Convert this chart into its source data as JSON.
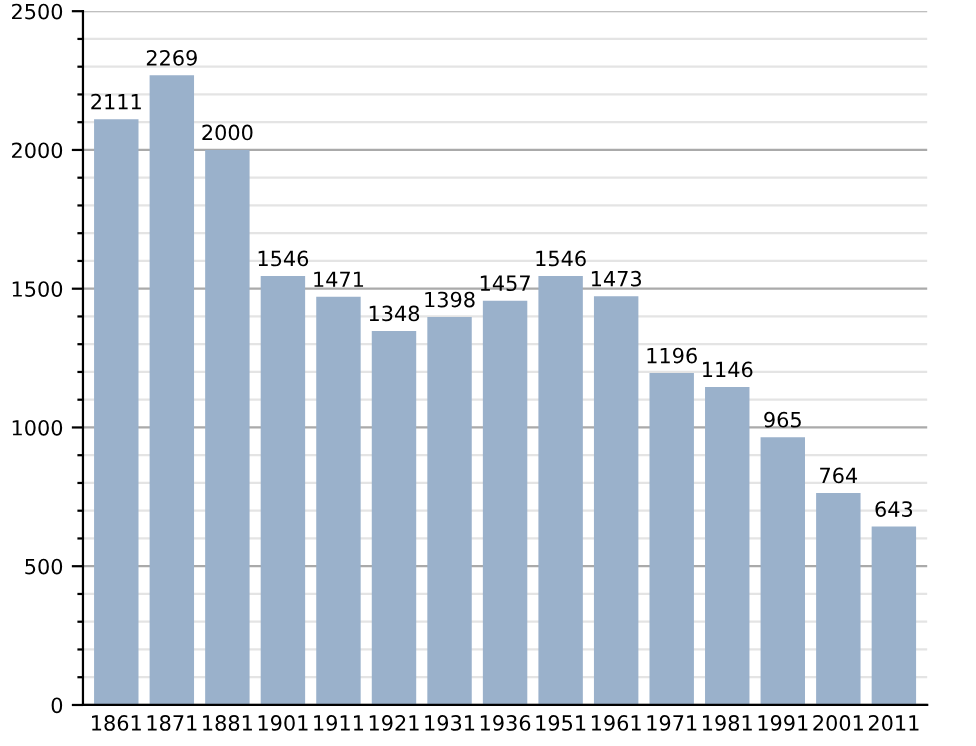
{
  "chart_data": {
    "type": "bar",
    "categories": [
      "1861",
      "1871",
      "1881",
      "1901",
      "1911",
      "1921",
      "1931",
      "1936",
      "1951",
      "1961",
      "1971",
      "1981",
      "1991",
      "2001",
      "2011"
    ],
    "values": [
      2111,
      2269,
      2000,
      1546,
      1471,
      1348,
      1398,
      1457,
      1546,
      1473,
      1196,
      1146,
      965,
      764,
      643
    ],
    "color": "#9ab1cb",
    "data_labels": true,
    "ylim": [
      0,
      2500
    ],
    "yticks": [
      0,
      {
        "value": 100,
        "label": null
      },
      {
        "value": 200,
        "label": null
      },
      {
        "value": 300,
        "label": null
      },
      {
        "value": 400,
        "label": null
      },
      500,
      {
        "value": 600,
        "label": null
      },
      {
        "value": 700,
        "label": null
      },
      {
        "value": 800,
        "label": null
      },
      {
        "value": 900,
        "label": null
      },
      1000,
      {
        "value": 1100,
        "label": null
      },
      {
        "value": 1200,
        "label": null
      },
      {
        "value": 1300,
        "label": null
      },
      {
        "value": 1400,
        "label": null
      },
      1500,
      {
        "value": 1600,
        "label": null
      },
      {
        "value": 1700,
        "label": null
      },
      {
        "value": 1800,
        "label": null
      },
      {
        "value": 1900,
        "label": null
      },
      2000,
      {
        "value": 2100,
        "label": null
      },
      {
        "value": 2200,
        "label": null
      },
      {
        "value": 2300,
        "label": null
      },
      {
        "value": 2400,
        "label": null
      },
      2500
    ],
    "grid": "y"
  }
}
